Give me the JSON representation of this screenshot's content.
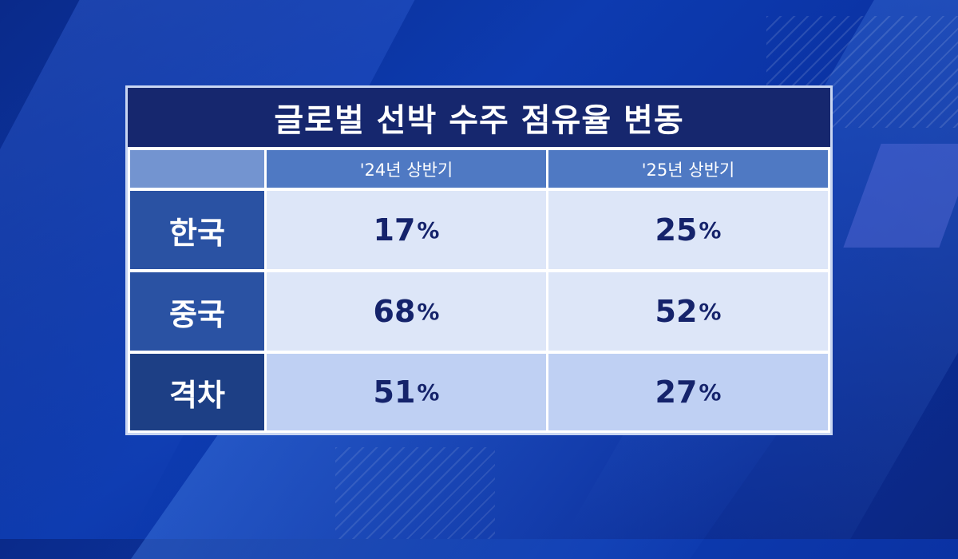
{
  "title": "글로벌 선박 수주 점유율 변동",
  "chart_data": {
    "type": "table",
    "title": "글로벌 선박 수주 점유율 변동",
    "columns": [
      "'24년 상반기",
      "'25년 상반기"
    ],
    "rows": [
      {
        "label": "한국",
        "values": [
          "17",
          "25"
        ]
      },
      {
        "label": "중국",
        "values": [
          "68",
          "52"
        ]
      },
      {
        "label": "격차",
        "values": [
          "51",
          "27"
        ]
      }
    ],
    "unit": "%"
  }
}
